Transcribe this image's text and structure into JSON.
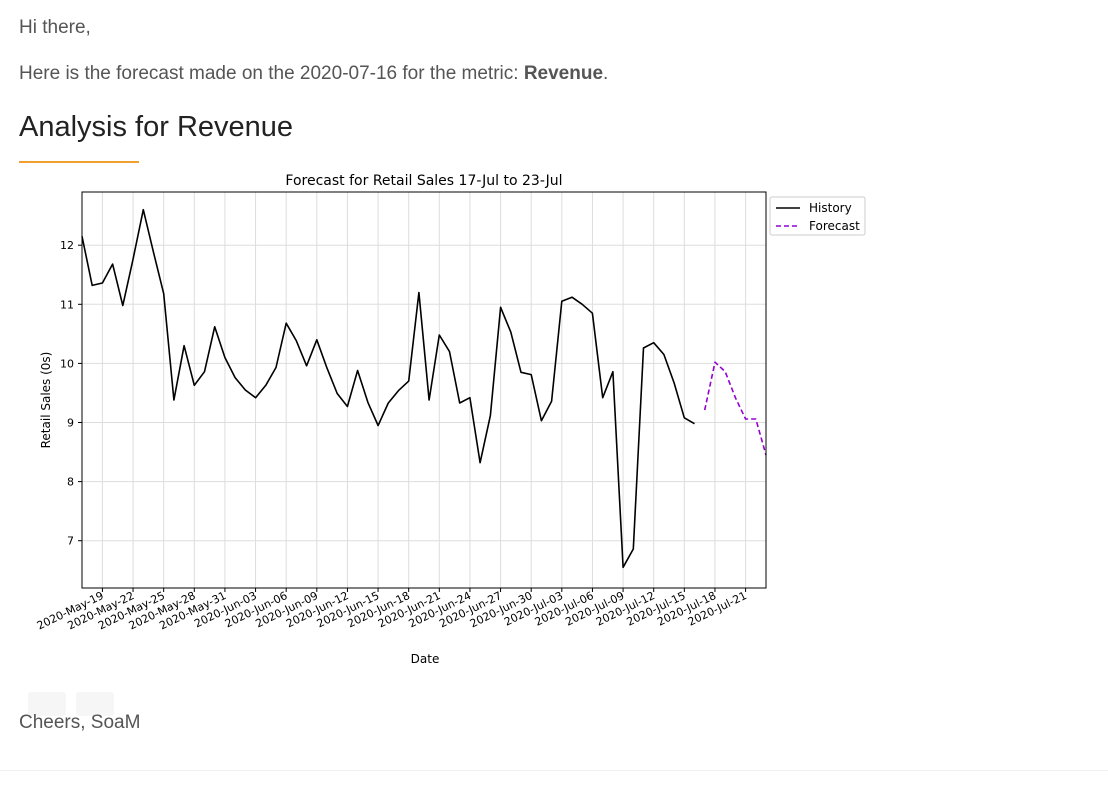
{
  "email": {
    "greeting": "Hi there,",
    "intro_prefix": "Here is the forecast made on the 2020-07-16 for the metric: ",
    "metric": "Revenue",
    "intro_suffix": ".",
    "section_title": "Analysis for Revenue",
    "signoff": "Cheers, SoaM"
  },
  "colors": {
    "accent_rule": "#f0a030",
    "history_line": "#000000",
    "forecast_line": "#9400d3"
  },
  "chart_data": {
    "type": "line",
    "title": "Forecast for Retail Sales 17-Jul to 23-Jul",
    "xlabel": "Date",
    "ylabel": "Retail Sales (0s)",
    "start_date": "2020-05-17",
    "xlim": [
      "2020-05-17",
      "2020-07-23"
    ],
    "ylim": [
      6.2,
      12.9
    ],
    "yticks": [
      7,
      8,
      9,
      10,
      11,
      12
    ],
    "xticks": [
      "2020-May-19",
      "2020-May-22",
      "2020-May-25",
      "2020-May-28",
      "2020-May-31",
      "2020-Jun-03",
      "2020-Jun-06",
      "2020-Jun-09",
      "2020-Jun-12",
      "2020-Jun-15",
      "2020-Jun-18",
      "2020-Jun-21",
      "2020-Jun-24",
      "2020-Jun-27",
      "2020-Jun-30",
      "2020-Jul-03",
      "2020-Jul-06",
      "2020-Jul-09",
      "2020-Jul-12",
      "2020-Jul-15",
      "2020-Jul-18",
      "2020-Jul-21"
    ],
    "grid": true,
    "legend_position": "outside-top-right",
    "series": [
      {
        "name": "History",
        "style": "solid",
        "color": "#000000",
        "x": [
          "2020-05-17",
          "2020-05-18",
          "2020-05-19",
          "2020-05-20",
          "2020-05-21",
          "2020-05-22",
          "2020-05-23",
          "2020-05-24",
          "2020-05-25",
          "2020-05-26",
          "2020-05-27",
          "2020-05-28",
          "2020-05-29",
          "2020-05-30",
          "2020-05-31",
          "2020-06-01",
          "2020-06-02",
          "2020-06-03",
          "2020-06-04",
          "2020-06-05",
          "2020-06-06",
          "2020-06-07",
          "2020-06-08",
          "2020-06-09",
          "2020-06-10",
          "2020-06-11",
          "2020-06-12",
          "2020-06-13",
          "2020-06-14",
          "2020-06-15",
          "2020-06-16",
          "2020-06-17",
          "2020-06-18",
          "2020-06-19",
          "2020-06-20",
          "2020-06-21",
          "2020-06-22",
          "2020-06-23",
          "2020-06-24",
          "2020-06-25",
          "2020-06-26",
          "2020-06-27",
          "2020-06-28",
          "2020-06-29",
          "2020-06-30",
          "2020-07-01",
          "2020-07-02",
          "2020-07-03",
          "2020-07-04",
          "2020-07-05",
          "2020-07-06",
          "2020-07-07",
          "2020-07-08",
          "2020-07-09",
          "2020-07-10",
          "2020-07-11",
          "2020-07-12",
          "2020-07-13",
          "2020-07-14",
          "2020-07-15",
          "2020-07-16"
        ],
        "values": [
          12.15,
          11.32,
          11.36,
          11.68,
          10.98,
          11.76,
          12.6,
          11.88,
          11.18,
          9.38,
          10.3,
          9.63,
          9.86,
          10.62,
          10.1,
          9.76,
          9.55,
          9.42,
          9.63,
          9.93,
          10.68,
          10.38,
          9.96,
          10.4,
          9.92,
          9.49,
          9.27,
          9.88,
          9.34,
          8.95,
          9.33,
          9.54,
          9.7,
          11.2,
          9.38,
          10.48,
          10.2,
          9.33,
          9.42,
          8.32,
          9.12,
          10.95,
          10.53,
          9.85,
          9.81,
          9.03,
          9.36,
          11.05,
          11.12,
          11.0,
          10.85,
          9.42,
          9.86,
          6.55,
          6.86,
          10.26,
          10.35,
          10.15,
          9.67,
          9.08,
          8.98
        ]
      },
      {
        "name": "Forecast",
        "style": "dashed",
        "color": "#9400d3",
        "x": [
          "2020-07-17",
          "2020-07-18",
          "2020-07-19",
          "2020-07-20",
          "2020-07-21",
          "2020-07-22",
          "2020-07-23"
        ],
        "values": [
          9.21,
          10.02,
          9.86,
          9.42,
          9.06,
          9.06,
          8.45
        ]
      }
    ]
  }
}
